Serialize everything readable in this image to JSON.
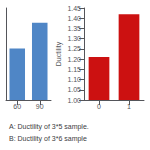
{
  "chart_data": [
    {
      "type": "bar",
      "categories": [
        "60",
        "90"
      ],
      "values": [
        1.28,
        1.42
      ],
      "color": "#4f86c6",
      "ylim": [
        1.0,
        1.5
      ],
      "tick_labels": "x",
      "grid": false,
      "annotation": "A: Ductility of 3*5 sample."
    },
    {
      "type": "bar",
      "categories": [
        "0",
        "1"
      ],
      "values": [
        1.21,
        1.42
      ],
      "color": "#cc1111",
      "ylabel": "Ductility",
      "ylim": [
        1.0,
        1.45
      ],
      "yticks": [
        {
          "value": 1.0,
          "label": "1.00"
        },
        1.05,
        {
          "value": 1.1,
          "label": "1.10"
        },
        1.15,
        {
          "value": 1.2,
          "label": "1.20"
        },
        1.25,
        {
          "value": 1.3,
          "label": "1.30"
        },
        1.35,
        {
          "value": 1.4,
          "label": "1.40"
        },
        1.45
      ],
      "grid": false,
      "annotation": "B: Ductility of 3*6 sample"
    }
  ]
}
